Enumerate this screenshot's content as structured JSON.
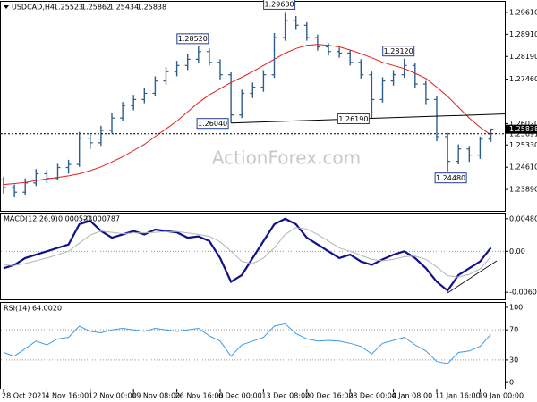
{
  "chart_data": [
    {
      "type": "candlestick",
      "title": "USDCAD,H4",
      "color": "#2f5d8a",
      "watermark": "ActionForex.com",
      "open": [
        1.242,
        1.2395,
        1.238,
        1.241,
        1.244,
        1.2425,
        1.246,
        1.247,
        1.2555,
        1.254,
        1.258,
        1.262,
        1.266,
        1.268,
        1.27,
        1.274,
        1.277,
        1.279,
        1.281,
        1.2835,
        1.28,
        1.276,
        1.263,
        1.27,
        1.272,
        1.276,
        1.288,
        1.2935,
        1.292,
        1.288,
        1.285,
        1.2835,
        1.283,
        1.28,
        1.276,
        1.268,
        1.274,
        1.276,
        1.279,
        1.273,
        1.268,
        1.256,
        1.248,
        1.252,
        1.25,
        1.25523
      ],
      "high": [
        1.243,
        1.2405,
        1.2425,
        1.2455,
        1.2452,
        1.2472,
        1.2485,
        1.2575,
        1.2568,
        1.2595,
        1.2635,
        1.2672,
        1.2695,
        1.2718,
        1.2755,
        1.2785,
        1.2805,
        1.2828,
        1.2852,
        1.2845,
        1.281,
        1.2768,
        1.2712,
        1.2735,
        1.2775,
        1.2895,
        1.2963,
        1.295,
        1.293,
        1.289,
        1.2862,
        1.2848,
        1.284,
        1.281,
        1.277,
        1.2752,
        1.2775,
        1.2812,
        1.2798,
        1.274,
        1.269,
        1.2572,
        1.2535,
        1.253,
        1.256,
        1.25862
      ],
      "low": [
        1.2375,
        1.2365,
        1.2372,
        1.24,
        1.241,
        1.2418,
        1.244,
        1.2462,
        1.252,
        1.253,
        1.257,
        1.261,
        1.2645,
        1.2668,
        1.269,
        1.2728,
        1.2755,
        1.2775,
        1.2798,
        1.279,
        1.2745,
        1.2604,
        1.262,
        1.2685,
        1.2705,
        1.275,
        1.287,
        1.2905,
        1.287,
        1.2838,
        1.2822,
        1.2815,
        1.279,
        1.2748,
        1.2619,
        1.267,
        1.2725,
        1.275,
        1.2718,
        1.2665,
        1.2545,
        1.2448,
        1.247,
        1.2478,
        1.2488,
        1.25434
      ],
      "close": [
        1.2395,
        1.238,
        1.241,
        1.244,
        1.2425,
        1.246,
        1.247,
        1.2555,
        1.254,
        1.258,
        1.262,
        1.266,
        1.268,
        1.27,
        1.274,
        1.277,
        1.279,
        1.281,
        1.2835,
        1.28,
        1.276,
        1.263,
        1.27,
        1.272,
        1.276,
        1.288,
        1.2935,
        1.292,
        1.288,
        1.285,
        1.2835,
        1.283,
        1.28,
        1.276,
        1.268,
        1.274,
        1.276,
        1.279,
        1.273,
        1.268,
        1.256,
        1.248,
        1.252,
        1.25,
        1.2552,
        1.25838
      ],
      "ma": {
        "color": "#e0201b",
        "values": [
          1.2405,
          1.2408,
          1.2412,
          1.2418,
          1.2423,
          1.2428,
          1.2433,
          1.244,
          1.245,
          1.2462,
          1.2478,
          1.2495,
          1.2515,
          1.2535,
          1.256,
          1.2585,
          1.261,
          1.264,
          1.267,
          1.2695,
          1.2715,
          1.2735,
          1.2752,
          1.277,
          1.279,
          1.281,
          1.283,
          1.2845,
          1.2855,
          1.2858,
          1.2855,
          1.285,
          1.284,
          1.2828,
          1.2815,
          1.28,
          1.279,
          1.278,
          1.2765,
          1.2748,
          1.272,
          1.269,
          1.2655,
          1.262,
          1.259,
          1.2565
        ]
      },
      "ylim": [
        1.232,
        1.2996
      ],
      "yticks": [
        {
          "value": 1.2961,
          "label": "1.29610"
        },
        {
          "value": 1.2891,
          "label": "1.28910"
        },
        {
          "value": 1.2819,
          "label": "1.28190"
        },
        {
          "value": 1.2746,
          "label": "1.27460"
        },
        {
          "value": 1.2602,
          "label": "1.26020"
        },
        {
          "value": 1.2533,
          "label": "1.25330"
        },
        {
          "value": 1.2461,
          "label": "1.24610"
        },
        {
          "value": 1.2389,
          "label": "1.23890"
        }
      ],
      "hline": {
        "value": 1.25691,
        "label": "1.25691"
      },
      "annotations": [
        {
          "value": 1.2852,
          "label": "1.28520"
        },
        {
          "value": 1.2963,
          "label": "1.29630"
        },
        {
          "value": 1.2812,
          "label": "1.28120"
        },
        {
          "value": 1.2604,
          "label": "1.26040"
        },
        {
          "value": 1.2619,
          "label": "1.26190"
        },
        {
          "value": 1.2448,
          "label": "1.24480"
        }
      ]
    },
    {
      "type": "line",
      "title": "MACD(12,26,9)",
      "series": [
        {
          "color": "#10108a",
          "values": [
            -0.0025,
            -0.002,
            -0.001,
            -0.0005,
            0.0,
            0.0005,
            0.001,
            0.004,
            0.0045,
            0.003,
            0.002,
            0.0025,
            0.003,
            0.0025,
            0.0032,
            0.003,
            0.0028,
            0.002,
            0.0022,
            0.0015,
            -0.001,
            -0.0045,
            -0.0035,
            -0.001,
            0.0015,
            0.004,
            0.0048,
            0.004,
            0.002,
            0.001,
            0.0,
            -0.001,
            -0.0005,
            -0.0015,
            -0.002,
            -0.0012,
            -0.0005,
            0.0,
            -0.001,
            -0.0025,
            -0.0045,
            -0.0058,
            -0.0035,
            -0.0025,
            -0.0015,
            0.000523
          ]
        },
        {
          "color": "#b4b4b4",
          "values": [
            -0.002,
            -0.0021,
            -0.0018,
            -0.0014,
            -0.001,
            -0.0005,
            0.0,
            0.0012,
            0.0024,
            0.003,
            0.0028,
            0.0026,
            0.0027,
            0.0027,
            0.0028,
            0.0029,
            0.0029,
            0.0027,
            0.0025,
            0.0022,
            0.0014,
            0.0,
            -0.0015,
            -0.0018,
            -0.001,
            0.0005,
            0.0025,
            0.0035,
            0.0033,
            0.0025,
            0.0015,
            0.0005,
            0.0,
            -0.0006,
            -0.0012,
            -0.0014,
            -0.0012,
            -0.0008,
            -0.0007,
            -0.0012,
            -0.0023,
            -0.0036,
            -0.0038,
            -0.0034,
            -0.0026,
            -0.000787
          ]
        }
      ],
      "ylim": [
        -0.00708,
        0.00558
      ],
      "yticks": [
        0.004809,
        {
          "value": 0,
          "label": "0.00"
        },
        -0.00605
      ]
    },
    {
      "type": "line",
      "title": "RSI(14) 64.0020",
      "series": [
        {
          "color": "#3d9be9",
          "values": [
            40,
            35,
            45,
            55,
            50,
            58,
            60,
            75,
            68,
            66,
            70,
            72,
            70,
            68,
            72,
            70,
            68,
            70,
            72,
            62,
            55,
            35,
            50,
            55,
            60,
            75,
            78,
            65,
            58,
            55,
            56,
            55,
            52,
            48,
            38,
            52,
            56,
            60,
            50,
            42,
            28,
            25,
            40,
            42,
            48,
            64.002
          ]
        }
      ],
      "ylim": [
        -8.1,
        105.8
      ],
      "yticks": [
        100,
        70,
        30,
        0
      ],
      "categories": [
        "28 Oct 2021",
        null,
        null,
        null,
        "4 Nov 16:00",
        null,
        null,
        null,
        "12 Nov 00:00",
        null,
        null,
        null,
        "19 Nov 08:00",
        null,
        null,
        null,
        "26 Nov 16:00",
        null,
        null,
        null,
        "6 Dec 00:00",
        null,
        null,
        null,
        "13 Dec 08:00",
        null,
        null,
        null,
        "20 Dec 16:00",
        null,
        null,
        null,
        "28 Dec 00:00",
        null,
        null,
        null,
        "4 Jan 08:00",
        null,
        null,
        null,
        "11 Jan 16:00",
        null,
        null,
        null,
        "19 Jan 00:00",
        null
      ]
    }
  ]
}
